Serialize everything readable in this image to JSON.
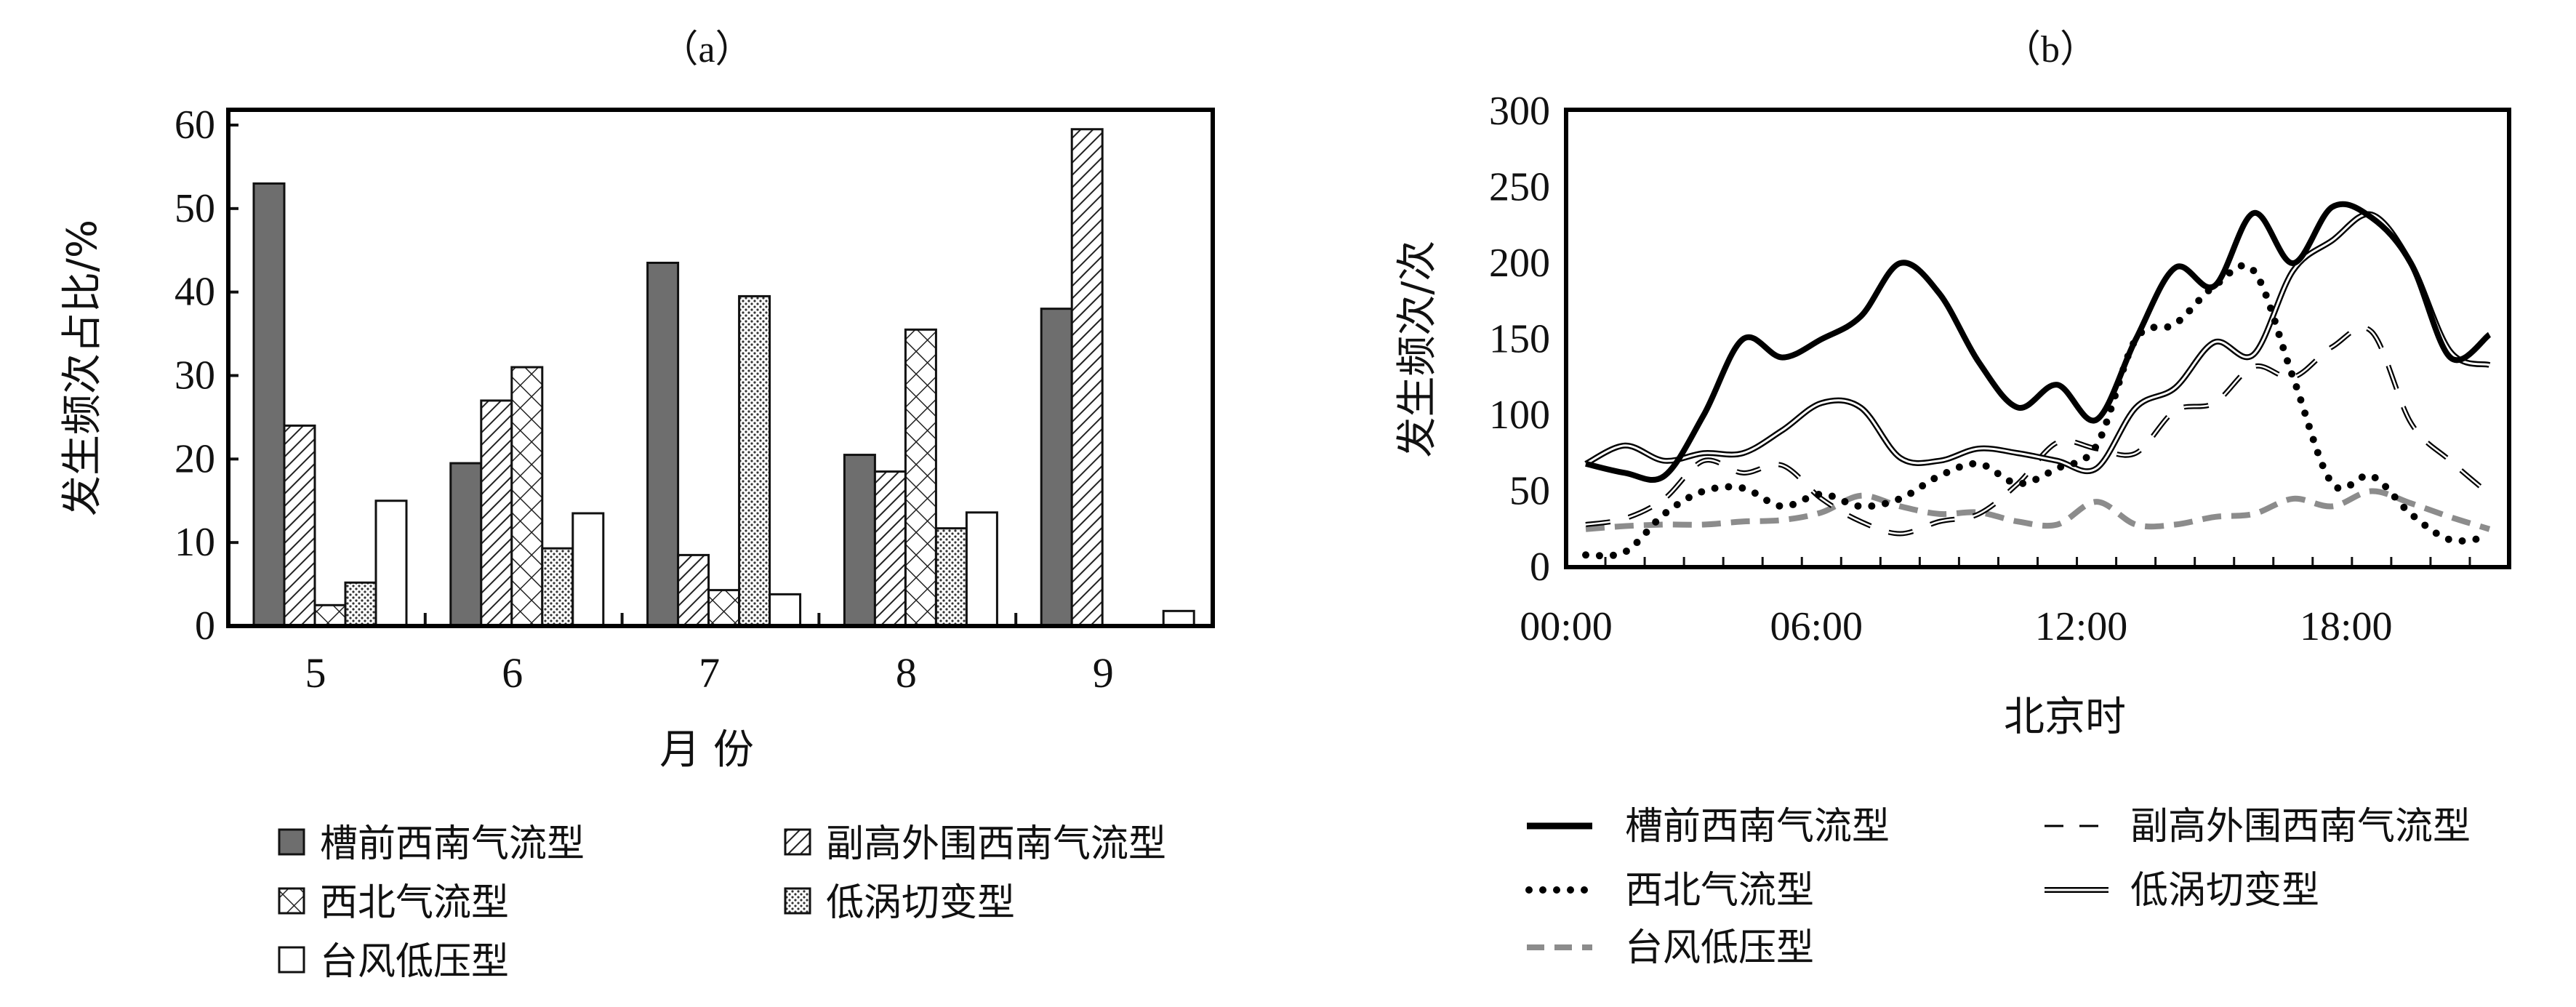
{
  "chart_data": [
    {
      "type": "bar",
      "title": "（a）",
      "xlabel": "月 份",
      "ylabel": "发生频次占比/%",
      "ylim": [
        0,
        60
      ],
      "yticks": [
        0,
        10,
        20,
        30,
        40,
        50,
        60
      ],
      "categories": [
        "5",
        "6",
        "7",
        "8",
        "9"
      ],
      "series": [
        {
          "name": "槽前西南气流型",
          "fill": "solid-gray",
          "values": [
            53,
            19.5,
            43.5,
            20.5,
            38
          ]
        },
        {
          "name": "副高外围西南气流型",
          "fill": "diagonal-hatch",
          "values": [
            24,
            27,
            8.5,
            18.5,
            59.5
          ]
        },
        {
          "name": "西北气流型",
          "fill": "cross-hatch",
          "values": [
            2.5,
            31,
            4.3,
            35.5,
            0
          ]
        },
        {
          "name": "低涡切变型",
          "fill": "dots",
          "values": [
            5.2,
            9.3,
            39.5,
            11.7,
            0
          ]
        },
        {
          "name": "台风低压型",
          "fill": "white",
          "values": [
            15,
            13.5,
            3.8,
            13.6,
            1.8
          ]
        }
      ],
      "legend_position": "bottom"
    },
    {
      "type": "line",
      "title": "（b）",
      "xlabel": "北京时",
      "ylabel": "发生频次/次",
      "ylim": [
        0,
        300
      ],
      "yticks": [
        0,
        50,
        100,
        150,
        200,
        250,
        300
      ],
      "xlim": [
        0,
        24
      ],
      "xtick_labels": [
        "00:00",
        "06:00",
        "12:00",
        "18:00"
      ],
      "x": [
        0.5,
        1.5,
        2.5,
        3.5,
        4.5,
        5.5,
        6.5,
        7.5,
        8.5,
        9.5,
        10.5,
        11.5,
        12.5,
        13.5,
        14.5,
        15.5,
        16.5,
        17.5,
        18.5,
        19.5,
        20.5,
        21.5,
        22.5,
        23.5
      ],
      "series": [
        {
          "name": "槽前西南气流型",
          "style": "thick-solid",
          "values": [
            68,
            62,
            60,
            100,
            150,
            138,
            150,
            165,
            200,
            180,
            135,
            105,
            120,
            97,
            150,
            197,
            185,
            233,
            200,
            237,
            230,
            200,
            138,
            153
          ]
        },
        {
          "name": "副高外围西南气流型",
          "style": "dashed",
          "values": [
            28,
            32,
            45,
            70,
            62,
            67,
            45,
            30,
            22,
            30,
            35,
            55,
            82,
            78,
            75,
            103,
            108,
            132,
            125,
            145,
            155,
            95,
            70,
            48
          ]
        },
        {
          "name": "西北气流型",
          "style": "dotted",
          "values": [
            8,
            10,
            35,
            50,
            52,
            40,
            48,
            40,
            45,
            60,
            68,
            55,
            65,
            80,
            150,
            160,
            185,
            195,
            125,
            55,
            60,
            35,
            18,
            20
          ]
        },
        {
          "name": "低涡切变型",
          "style": "double-line",
          "values": [
            68,
            80,
            70,
            75,
            75,
            90,
            108,
            105,
            72,
            70,
            78,
            75,
            70,
            65,
            105,
            118,
            148,
            140,
            195,
            215,
            232,
            200,
            142,
            133
          ]
        },
        {
          "name": "台风低压型",
          "style": "gray-dashed",
          "values": [
            25,
            27,
            28,
            28,
            30,
            31,
            36,
            47,
            40,
            35,
            36,
            30,
            28,
            43,
            28,
            28,
            33,
            35,
            45,
            40,
            50,
            42,
            33,
            25
          ]
        }
      ],
      "legend_position": "bottom"
    }
  ]
}
